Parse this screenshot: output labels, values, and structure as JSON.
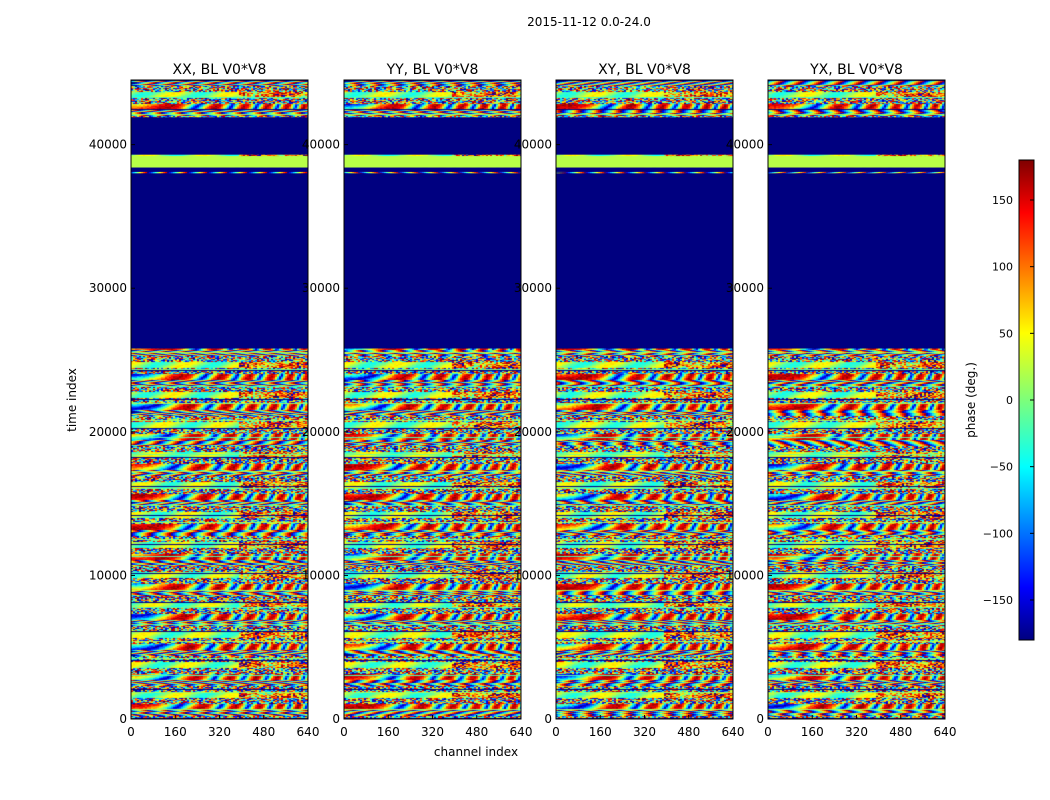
{
  "figure_title": "2015-11-12 0.0-24.0",
  "chart_data": {
    "type": "heatmap",
    "suptitle": "2015-11-12 0.0-24.0",
    "xlabel": "channel index",
    "ylabel": "time index",
    "xlim": [
      0,
      640
    ],
    "ylim": [
      0,
      44500
    ],
    "xticks": [
      "0",
      "160",
      "320",
      "480",
      "640"
    ],
    "yticks": [
      "0",
      "10000",
      "20000",
      "30000",
      "40000"
    ],
    "xtick_values": [
      0,
      160,
      320,
      480,
      640
    ],
    "ytick_values": [
      0,
      10000,
      20000,
      30000,
      40000
    ],
    "panels": [
      {
        "title": "XX, BL V0*V8",
        "seed": 11
      },
      {
        "title": "YY, BL V0*V8",
        "seed": 23
      },
      {
        "title": "XY, BL V0*V8",
        "seed": 37
      },
      {
        "title": "YX, BL V0*V8",
        "seed": 53
      }
    ],
    "no_data_bands": [
      {
        "from": 38100,
        "to": 38400
      },
      {
        "from": 25800,
        "to": 38000
      },
      {
        "from": 39300,
        "to": 41900
      }
    ],
    "flat_phase_bands": [
      {
        "from": 38400,
        "to": 39200,
        "phase": 20
      }
    ],
    "colorbar": {
      "label": "phase (deg.)",
      "range": [
        -180,
        180
      ],
      "ticks": [
        "150",
        "100",
        "50",
        "0",
        "−50",
        "−100",
        "−150"
      ],
      "tick_values": [
        150,
        100,
        50,
        0,
        -50,
        -100,
        -150
      ],
      "colormap": "jet"
    }
  }
}
